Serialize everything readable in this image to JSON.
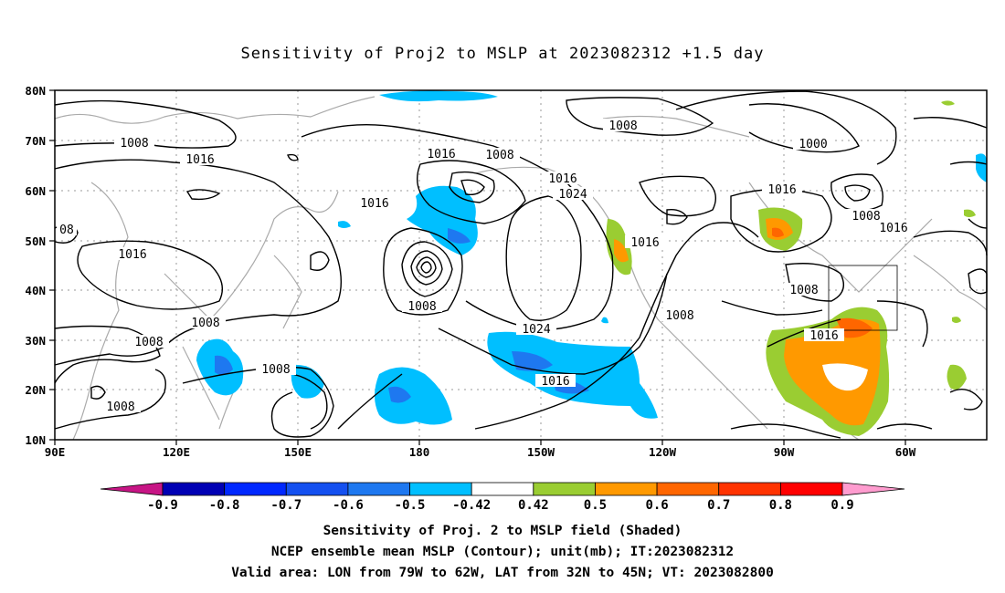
{
  "title": "Sensitivity of Proj2 to MSLP at 2023082312 +1.5 day",
  "lat_labels": [
    "80N",
    "70N",
    "60N",
    "50N",
    "40N",
    "30N",
    "20N",
    "10N"
  ],
  "lon_labels": [
    "90E",
    "120E",
    "150E",
    "180",
    "150W",
    "120W",
    "90W",
    "60W"
  ],
  "contour_labels": {
    "c1": "1008",
    "c2": "1016",
    "c3": "08",
    "c4": "1016",
    "c5": "1008",
    "c6": "1008",
    "c7": "1008",
    "c8": "1008",
    "c9": "1016",
    "c10": "1016",
    "c11": "1008",
    "c12": "1008",
    "c13": "1016",
    "c14": "1024",
    "c15": "1008",
    "c16": "1000",
    "c17": "1016",
    "c18": "1008",
    "c19": "1016",
    "c20": "1016",
    "c21": "1008",
    "c22": "1008",
    "c23": "1024",
    "c24": "1016",
    "c25": "1016"
  },
  "colorbar": {
    "labels": [
      "-0.9",
      "-0.8",
      "-0.7",
      "-0.6",
      "-0.5",
      "-0.42",
      "0.42",
      "0.5",
      "0.6",
      "0.7",
      "0.8",
      "0.9"
    ],
    "colors": [
      "#c71585",
      "#0000b4",
      "#0028ff",
      "#1450f0",
      "#1e78f0",
      "#00bfff",
      "#ffffff",
      "#9acd32",
      "#ff9900",
      "#ff6600",
      "#ff3300",
      "#ff0000",
      "#ff9ccf"
    ]
  },
  "captions": {
    "line1": "Sensitivity of Proj. 2 to MSLP field (Shaded)",
    "line2": "NCEP ensemble mean MSLP (Contour); unit(mb); IT:2023082312",
    "line3": "Valid area: LON from 79W to 62W, LAT from 32N to 45N; VT: 2023082800"
  }
}
